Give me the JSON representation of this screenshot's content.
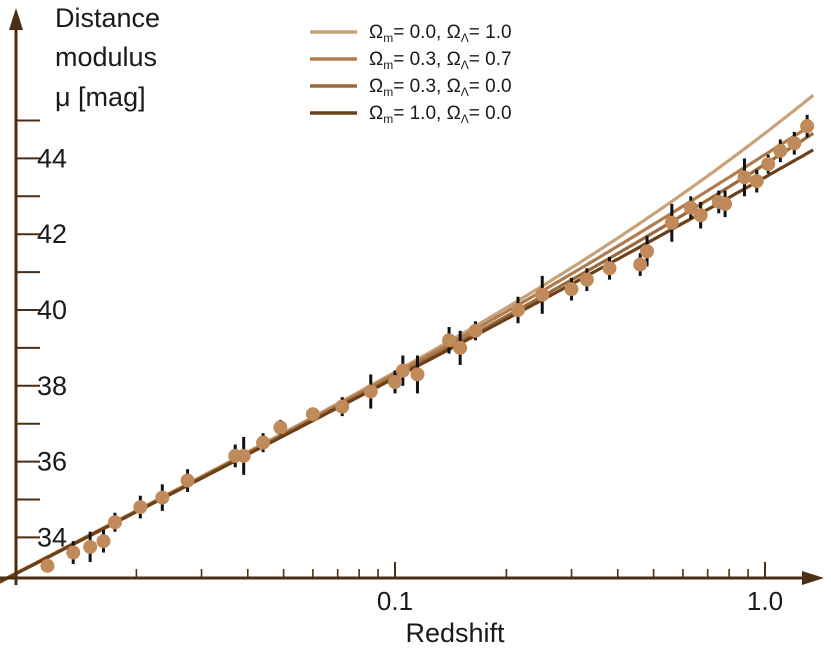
{
  "chart_data": {
    "type": "line",
    "title": "",
    "xlabel": "Redshift",
    "ylabel_lines": [
      "Distance",
      "modulus",
      "μ [mag]"
    ],
    "xscale": "log",
    "xlim": [
      0.01,
      1.2
    ],
    "ylim": [
      32.6,
      46.5
    ],
    "x_tick_labels": [
      {
        "value": 0.1,
        "label": "0.1"
      },
      {
        "value": 1.0,
        "label": "1.0"
      }
    ],
    "x_minor_ticks": [
      0.02,
      0.03,
      0.04,
      0.05,
      0.06,
      0.07,
      0.08,
      0.09,
      0.2,
      0.3,
      0.4,
      0.5,
      0.6,
      0.7,
      0.8,
      0.9
    ],
    "y_ticks": [
      34,
      36,
      38,
      40,
      42,
      44
    ],
    "y_minor_ticks": [
      35,
      37,
      39,
      41,
      43,
      45
    ],
    "legend_position": "top",
    "series": [
      {
        "name": "Ωm= 0.0, ΩΛ= 1.0",
        "label_main": "Ω",
        "label_sub1": "m",
        "label_mid": "= 0.0, Ω",
        "label_sub2": "Λ",
        "label_end": "= 1.0",
        "color": "#c9a27a",
        "Om": 0.0,
        "OL": 1.0
      },
      {
        "name": "Ωm= 0.3, ΩΛ= 0.7",
        "label_main": "Ω",
        "label_sub1": "m",
        "label_mid": "= 0.3, Ω",
        "label_sub2": "Λ",
        "label_end": "= 0.7",
        "color": "#b07c4e",
        "Om": 0.3,
        "OL": 0.7
      },
      {
        "name": "Ωm= 0.3, ΩΛ= 0.0",
        "label_main": "Ω",
        "label_sub1": "m",
        "label_mid": "= 0.3, Ω",
        "label_sub2": "Λ",
        "label_end": "= 0.0",
        "color": "#9a6a3c",
        "Om": 0.3,
        "OL": 0.0
      },
      {
        "name": "Ωm= 1.0, ΩΛ= 0.0",
        "label_main": "Ω",
        "label_sub1": "m",
        "label_mid": "= 1.0, Ω",
        "label_sub2": "Λ",
        "label_end": "= 0.0",
        "color": "#6b4018",
        "Om": 1.0,
        "OL": 0.0
      }
    ],
    "points_color": "#c08a5a",
    "errorbar_color": "#111111",
    "points": [
      {
        "z": 0.0115,
        "mu": 33.25,
        "err": 0.1
      },
      {
        "z": 0.0135,
        "mu": 33.6,
        "err": 0.3
      },
      {
        "z": 0.015,
        "mu": 33.75,
        "err": 0.4
      },
      {
        "z": 0.0163,
        "mu": 33.9,
        "err": 0.3
      },
      {
        "z": 0.0175,
        "mu": 34.4,
        "err": 0.25
      },
      {
        "z": 0.0205,
        "mu": 34.8,
        "err": 0.3
      },
      {
        "z": 0.0235,
        "mu": 35.05,
        "err": 0.35
      },
      {
        "z": 0.0275,
        "mu": 35.5,
        "err": 0.3
      },
      {
        "z": 0.037,
        "mu": 36.15,
        "err": 0.3
      },
      {
        "z": 0.039,
        "mu": 36.15,
        "err": 0.5
      },
      {
        "z": 0.044,
        "mu": 36.5,
        "err": 0.25
      },
      {
        "z": 0.049,
        "mu": 36.9,
        "err": 0.2
      },
      {
        "z": 0.06,
        "mu": 37.25,
        "err": 0.15
      },
      {
        "z": 0.072,
        "mu": 37.45,
        "err": 0.25
      },
      {
        "z": 0.086,
        "mu": 37.85,
        "err": 0.45
      },
      {
        "z": 0.1,
        "mu": 38.1,
        "err": 0.3
      },
      {
        "z": 0.105,
        "mu": 38.4,
        "err": 0.4
      },
      {
        "z": 0.115,
        "mu": 38.3,
        "err": 0.5
      },
      {
        "z": 0.14,
        "mu": 39.2,
        "err": 0.35
      },
      {
        "z": 0.15,
        "mu": 39.0,
        "err": 0.45
      },
      {
        "z": 0.165,
        "mu": 39.45,
        "err": 0.25
      },
      {
        "z": 0.215,
        "mu": 40.0,
        "err": 0.35
      },
      {
        "z": 0.25,
        "mu": 40.4,
        "err": 0.5
      },
      {
        "z": 0.3,
        "mu": 40.55,
        "err": 0.3
      },
      {
        "z": 0.33,
        "mu": 40.8,
        "err": 0.3
      },
      {
        "z": 0.38,
        "mu": 41.1,
        "err": 0.3
      },
      {
        "z": 0.46,
        "mu": 41.2,
        "err": 0.3
      },
      {
        "z": 0.48,
        "mu": 41.55,
        "err": 0.4
      },
      {
        "z": 0.56,
        "mu": 42.3,
        "err": 0.5
      },
      {
        "z": 0.63,
        "mu": 42.7,
        "err": 0.3
      },
      {
        "z": 0.67,
        "mu": 42.5,
        "err": 0.35
      },
      {
        "z": 0.75,
        "mu": 42.85,
        "err": 0.3
      },
      {
        "z": 0.78,
        "mu": 42.8,
        "err": 0.35
      },
      {
        "z": 0.88,
        "mu": 43.5,
        "err": 0.5
      },
      {
        "z": 0.95,
        "mu": 43.4,
        "err": 0.3
      },
      {
        "z": 1.02,
        "mu": 43.85,
        "err": 0.25
      },
      {
        "z": 1.1,
        "mu": 44.2,
        "err": 0.3
      },
      {
        "z": 1.2,
        "mu": 44.4,
        "err": 0.3
      },
      {
        "z": 1.3,
        "mu": 44.85,
        "err": 0.3
      }
    ]
  }
}
